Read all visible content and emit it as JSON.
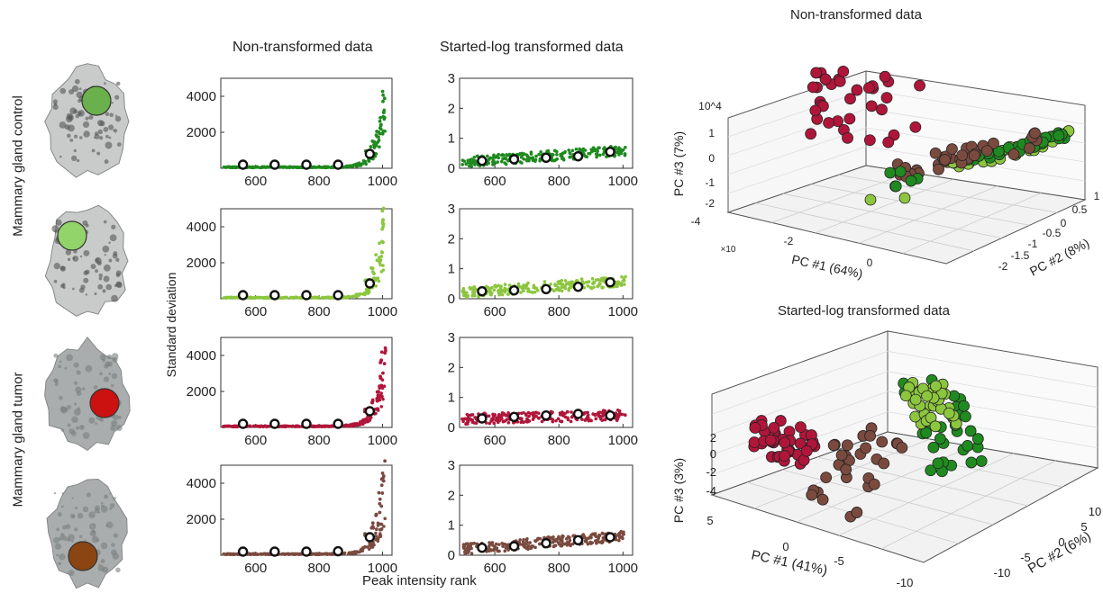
{
  "labels": {
    "col_nontransformed": "Non-transformed data",
    "col_log": "Started-log transformed data",
    "pca_top_title": "Non-transformed data",
    "pca_bottom_title": "Started-log transformed data",
    "row_group_control": "Mammary gland control",
    "row_group_tumor": "Mammary gland tumor",
    "y_axis": "Standard deviation",
    "x_axis": "Peak intensity rank"
  },
  "colors": {
    "control_1": "#1f8a1f",
    "control_2": "#8cc63f",
    "tumor_1": "#b0163a",
    "tumor_2": "#7a4a3e",
    "tissue_dot_1": "#6ab04c",
    "tissue_dot_2": "#92d36a",
    "tissue_dot_3": "#cc1111",
    "tissue_dot_4": "#8b4513"
  },
  "chart_data": [
    {
      "type": "scatter",
      "id": "sd_non_transformed",
      "panels": [
        {
          "name": "control_1",
          "color": "#1f8a1f",
          "markers": {
            "x": [
              560,
              660,
              760,
              860,
              960
            ],
            "y": [
              15,
              25,
              60,
              160,
              800
            ]
          },
          "tail": {
            "x": [
              950,
              970,
              985,
              995,
              1000,
              1005
            ],
            "y": [
              900,
              1400,
              2000,
              2600,
              3300,
              4100
            ]
          }
        },
        {
          "name": "control_2",
          "color": "#8cc63f",
          "markers": {
            "x": [
              560,
              660,
              760,
              860,
              960
            ],
            "y": [
              20,
              30,
              70,
              180,
              850
            ]
          },
          "tail": {
            "x": [
              950,
              970,
              985,
              995,
              1000,
              1005
            ],
            "y": [
              1000,
              1600,
              2300,
              3000,
              3900,
              4800
            ]
          }
        },
        {
          "name": "tumor_1",
          "color": "#b0163a",
          "markers": {
            "x": [
              560,
              660,
              760,
              860,
              960
            ],
            "y": [
              15,
              30,
              65,
              200,
              900
            ]
          },
          "tail": {
            "x": [
              950,
              970,
              985,
              995,
              1000,
              1005
            ],
            "y": [
              1000,
              1500,
              2100,
              2800,
              3500,
              4300
            ]
          }
        },
        {
          "name": "tumor_2",
          "color": "#7a4a3e",
          "markers": {
            "x": [
              560,
              660,
              760,
              860,
              960
            ],
            "y": [
              20,
              40,
              80,
              220,
              1000
            ]
          },
          "tail": {
            "x": [
              950,
              970,
              985,
              995,
              1000,
              1005
            ],
            "y": [
              1100,
              1700,
              2400,
              3200,
              4000,
              4800
            ]
          }
        }
      ],
      "xticks": [
        600,
        800,
        1000
      ],
      "yticks": [
        2000,
        4000
      ],
      "xlim": [
        490,
        1030
      ],
      "ylim": [
        0,
        5000
      ],
      "xlabel": "Peak intensity rank",
      "ylabel": "Standard deviation",
      "title": "Non-transformed data"
    },
    {
      "type": "scatter",
      "id": "sd_started_log",
      "panels": [
        {
          "name": "control_1",
          "color": "#1f8a1f",
          "markers": {
            "x": [
              560,
              660,
              760,
              860,
              960
            ],
            "y": [
              0.25,
              0.3,
              0.35,
              0.4,
              0.55
            ]
          }
        },
        {
          "name": "control_2",
          "color": "#8cc63f",
          "markers": {
            "x": [
              560,
              660,
              760,
              860,
              960
            ],
            "y": [
              0.25,
              0.28,
              0.32,
              0.4,
              0.55
            ]
          }
        },
        {
          "name": "tumor_1",
          "color": "#b0163a",
          "markers": {
            "x": [
              560,
              660,
              760,
              860,
              960
            ],
            "y": [
              0.3,
              0.35,
              0.4,
              0.45,
              0.4
            ]
          }
        },
        {
          "name": "tumor_2",
          "color": "#7a4a3e",
          "markers": {
            "x": [
              560,
              660,
              760,
              860,
              960
            ],
            "y": [
              0.25,
              0.3,
              0.4,
              0.5,
              0.6
            ]
          }
        }
      ],
      "xticks": [
        600,
        800,
        1000
      ],
      "yticks": [
        0,
        1,
        2,
        3
      ],
      "xlim": [
        490,
        1030
      ],
      "ylim": [
        0,
        3
      ],
      "xlabel": "Peak intensity rank",
      "ylabel": "Standard deviation",
      "title": "Started-log transformed data"
    },
    {
      "type": "scatter",
      "id": "pca_non_transformed",
      "title": "Non-transformed data",
      "scale_note": "10^4",
      "axes": {
        "x": {
          "label": "PC #1 (64%)",
          "ticks": [
            "-4",
            "-2",
            "0"
          ],
          "exponent": "×10^4"
        },
        "y": {
          "label": "PC #2 (8%)",
          "ticks": [
            "1",
            "0.5",
            "0",
            "-0.5",
            "-1",
            "-1.5",
            "-2"
          ]
        },
        "z": {
          "label": "PC #3 (7%)",
          "ticks": [
            "1",
            "0",
            "-1",
            "-2"
          ],
          "exponent": "10^4"
        }
      },
      "groups": [
        "control_1",
        "control_2",
        "tumor_1",
        "tumor_2"
      ]
    },
    {
      "type": "scatter",
      "id": "pca_started_log",
      "title": "Started-log transformed data",
      "axes": {
        "x": {
          "label": "PC #1 (41%)",
          "ticks": [
            "5",
            "0",
            "-5",
            "-10"
          ]
        },
        "y": {
          "label": "PC #2 (6%)",
          "ticks": [
            "10",
            "5",
            "0",
            "-5",
            "-10"
          ]
        },
        "z": {
          "label": "PC #3 (3%)",
          "ticks": [
            "2",
            "0",
            "-2",
            "-4"
          ]
        }
      },
      "groups": [
        "control_1",
        "control_2",
        "tumor_1",
        "tumor_2"
      ]
    }
  ]
}
